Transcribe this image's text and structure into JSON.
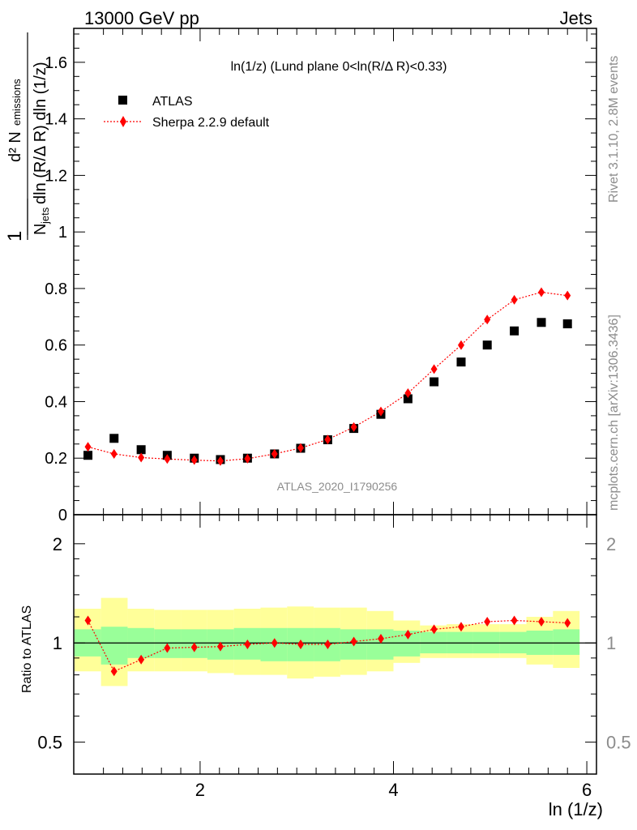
{
  "header": {
    "energy_label": "13000 GeV pp",
    "process_label": "Jets"
  },
  "side_labels": {
    "rivet": "Rivet 3.1.10,  2.8M events",
    "mcplots": "mcplots.cern.ch [arXiv:1306.3436]"
  },
  "chart_data": [
    {
      "type": "scatter",
      "panel": "main",
      "title": "ln(1/z) (Lund plane 0<ln(R/Δ R)<0.33)",
      "watermark": "ATLAS_2020_I1790256",
      "ylabel": "1/N_jets d²N_emissions / dln(R/Δ R) dln(1/z)",
      "xlim": [
        0.693,
        6.1
      ],
      "ylim": [
        0,
        1.72
      ],
      "yticks": [
        0,
        0.2,
        0.4,
        0.6,
        0.8,
        1,
        1.2,
        1.4,
        1.6
      ],
      "grid": false,
      "legend_position": "top-left",
      "series": [
        {
          "name": "ATLAS",
          "style": "black-square",
          "color": "#000000",
          "x": [
            0.84,
            1.11,
            1.39,
            1.66,
            1.94,
            2.21,
            2.49,
            2.77,
            3.04,
            3.32,
            3.59,
            3.87,
            4.15,
            4.42,
            4.7,
            4.97,
            5.25,
            5.53,
            5.8
          ],
          "y": [
            0.21,
            0.27,
            0.23,
            0.21,
            0.2,
            0.195,
            0.2,
            0.215,
            0.235,
            0.265,
            0.305,
            0.355,
            0.41,
            0.47,
            0.54,
            0.6,
            0.65,
            0.68,
            0.675
          ]
        },
        {
          "name": "Sherpa 2.2.9 default",
          "style": "red-diamond-dotted",
          "color": "#ff0000",
          "x": [
            0.84,
            1.11,
            1.39,
            1.66,
            1.94,
            2.21,
            2.49,
            2.77,
            3.04,
            3.32,
            3.59,
            3.87,
            4.15,
            4.42,
            4.7,
            4.97,
            5.25,
            5.53,
            5.8
          ],
          "y": [
            0.24,
            0.215,
            0.202,
            0.197,
            0.193,
            0.19,
            0.198,
            0.215,
            0.236,
            0.266,
            0.31,
            0.365,
            0.43,
            0.515,
            0.6,
            0.69,
            0.76,
            0.787,
            0.775
          ]
        }
      ]
    },
    {
      "type": "line",
      "panel": "ratio",
      "xlabel": "ln (1/z)",
      "ylabel": "Ratio to ATLAS",
      "yscale": "log",
      "xlim": [
        0.693,
        6.1
      ],
      "ylim": [
        0.4,
        2.45
      ],
      "xticks": [
        2,
        4,
        6
      ],
      "yticks": [
        0.5,
        1,
        2
      ],
      "bin_edges": [
        0.7,
        0.975,
        1.25,
        1.525,
        1.8,
        2.075,
        2.35,
        2.625,
        2.9,
        3.175,
        3.45,
        3.725,
        4.0,
        4.275,
        4.55,
        4.825,
        5.1,
        5.375,
        5.65,
        5.925
      ],
      "bands": [
        {
          "name": "ATLAS stat",
          "color": "#99ff99",
          "lo": [
            0.91,
            0.86,
            0.9,
            0.9,
            0.9,
            0.89,
            0.89,
            0.88,
            0.88,
            0.88,
            0.89,
            0.89,
            0.91,
            0.93,
            0.93,
            0.93,
            0.93,
            0.92,
            0.92
          ],
          "hi": [
            1.1,
            1.12,
            1.11,
            1.1,
            1.1,
            1.1,
            1.11,
            1.11,
            1.11,
            1.11,
            1.1,
            1.1,
            1.09,
            1.08,
            1.08,
            1.08,
            1.08,
            1.09,
            1.1
          ]
        },
        {
          "name": "ATLAS total",
          "color": "#ffff99",
          "lo": [
            0.82,
            0.74,
            0.82,
            0.82,
            0.82,
            0.81,
            0.8,
            0.8,
            0.78,
            0.79,
            0.8,
            0.82,
            0.87,
            0.9,
            0.9,
            0.9,
            0.9,
            0.86,
            0.84
          ],
          "hi": [
            1.27,
            1.37,
            1.27,
            1.26,
            1.26,
            1.26,
            1.27,
            1.28,
            1.29,
            1.28,
            1.28,
            1.25,
            1.17,
            1.13,
            1.14,
            1.14,
            1.14,
            1.2,
            1.25
          ]
        }
      ],
      "series": [
        {
          "name": "Sherpa 2.2.9 default",
          "color": "#ff0000",
          "x": [
            0.84,
            1.11,
            1.39,
            1.66,
            1.94,
            2.21,
            2.49,
            2.77,
            3.04,
            3.32,
            3.59,
            3.87,
            4.15,
            4.42,
            4.7,
            4.97,
            5.25,
            5.53,
            5.8
          ],
          "y": [
            1.17,
            0.82,
            0.89,
            0.965,
            0.97,
            0.975,
            0.99,
            1.0,
            0.99,
            0.99,
            1.01,
            1.03,
            1.06,
            1.1,
            1.12,
            1.16,
            1.17,
            1.16,
            1.15
          ]
        }
      ],
      "reference_line": 1
    }
  ]
}
